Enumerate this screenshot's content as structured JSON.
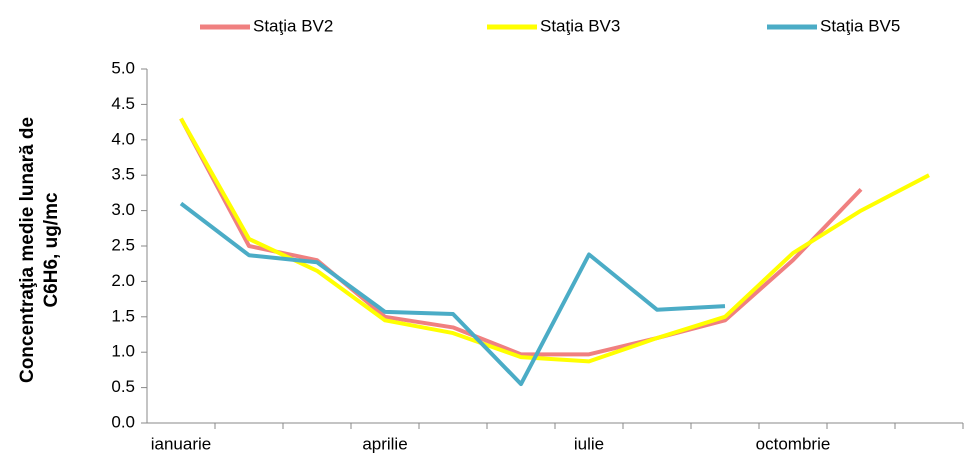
{
  "chart_data": {
    "type": "line",
    "ylabel": [
      "Concentraţia medie  lunară de",
      "C6H6, ug/mc"
    ],
    "categories": [
      "ianuarie",
      null,
      null,
      "aprilie",
      null,
      null,
      "iulie",
      null,
      null,
      "octombrie",
      null,
      null
    ],
    "series": [
      {
        "name": "Staţia BV2",
        "color": "#f08080",
        "values": [
          4.3,
          2.5,
          2.3,
          1.5,
          1.35,
          0.97,
          0.97,
          1.2,
          1.45,
          2.3,
          3.3,
          null
        ]
      },
      {
        "name": "Staţia BV3",
        "color": "#ffff00",
        "values": [
          4.3,
          2.6,
          2.15,
          1.45,
          1.27,
          0.93,
          0.87,
          1.2,
          1.5,
          2.4,
          3.0,
          3.5
        ]
      },
      {
        "name": "Staţia BV5",
        "color": "#4bacc6",
        "values": [
          3.1,
          2.37,
          2.27,
          1.57,
          1.54,
          0.55,
          2.38,
          1.6,
          1.65,
          null,
          null,
          null
        ]
      }
    ],
    "ylim": [
      0,
      5
    ],
    "yticks": [
      {
        "value": 0,
        "label": "0.0"
      },
      0.5,
      {
        "value": 1,
        "label": "1.0"
      },
      1.5,
      {
        "value": 2,
        "label": "2.0"
      },
      2.5,
      {
        "value": 3,
        "label": "3.0"
      },
      3.5,
      {
        "value": 4,
        "label": "4.0"
      },
      4.5,
      {
        "value": 5,
        "label": "5.0"
      }
    ],
    "grid": false,
    "legend": "top"
  }
}
